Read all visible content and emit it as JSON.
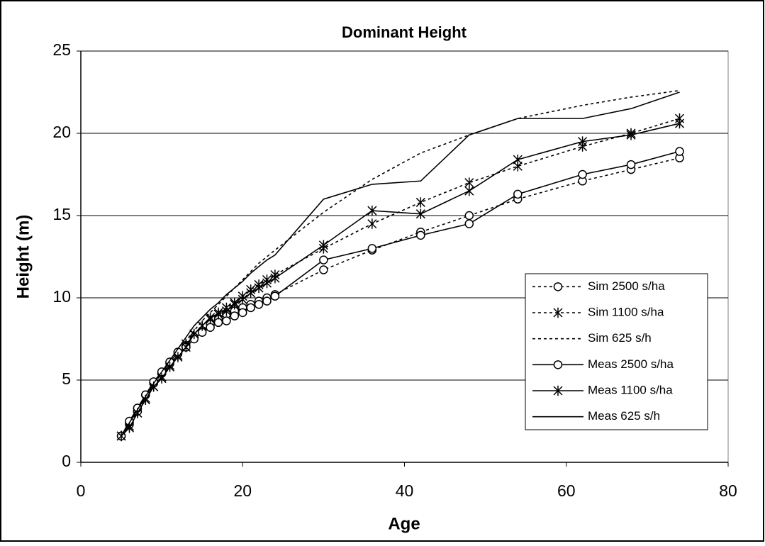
{
  "chart_data": {
    "type": "line",
    "title": "Dominant Height",
    "x_label": "Age",
    "y_label": "Height (m)",
    "x": [
      5,
      6,
      7,
      8,
      9,
      10,
      11,
      12,
      13,
      14,
      15,
      16,
      17,
      18,
      19,
      20,
      21,
      22,
      23,
      24,
      30,
      36,
      42,
      48,
      54,
      62,
      68,
      74
    ],
    "series": [
      {
        "name": "Sim 2500 s/ha",
        "color": "#000000",
        "line_style": "dotted",
        "marker": "circle",
        "values": [
          1.6,
          2.3,
          3.1,
          4.1,
          4.8,
          5.4,
          6.0,
          6.6,
          7.1,
          7.6,
          8.0,
          8.4,
          8.7,
          9.0,
          9.2,
          9.4,
          9.6,
          9.8,
          10.0,
          10.2,
          11.7,
          12.9,
          14.0,
          15.0,
          16.0,
          17.1,
          17.8,
          18.5
        ]
      },
      {
        "name": "Sim 1100 s/ha",
        "color": "#000000",
        "line_style": "dotted",
        "marker": "star",
        "values": [
          1.6,
          2.2,
          3.0,
          3.9,
          4.6,
          5.2,
          5.9,
          6.5,
          7.2,
          7.8,
          8.3,
          8.7,
          9.1,
          9.4,
          9.7,
          10.1,
          10.5,
          10.8,
          11.1,
          11.4,
          13.0,
          14.5,
          15.8,
          17.0,
          18.0,
          19.2,
          20.0,
          20.9
        ]
      },
      {
        "name": "Sim 625 s/h",
        "color": "#000000",
        "line_style": "dotted",
        "marker": "none",
        "values": [
          1.6,
          2.3,
          3.1,
          4.0,
          4.8,
          5.4,
          6.1,
          6.7,
          7.4,
          8.0,
          8.6,
          9.1,
          9.6,
          10.1,
          10.6,
          11.1,
          11.6,
          12.1,
          12.5,
          12.9,
          15.2,
          17.2,
          18.8,
          19.9,
          20.9,
          21.7,
          22.2,
          22.6
        ]
      },
      {
        "name": "Meas 2500 s/ha",
        "color": "#000000",
        "line_style": "solid",
        "marker": "circle",
        "values": [
          1.6,
          2.5,
          3.3,
          4.1,
          4.9,
          5.5,
          6.1,
          6.7,
          7.0,
          7.5,
          7.9,
          8.2,
          8.5,
          8.6,
          8.9,
          9.1,
          9.4,
          9.6,
          9.8,
          10.1,
          12.3,
          13.0,
          13.8,
          14.5,
          16.3,
          17.5,
          18.1,
          18.9
        ]
      },
      {
        "name": "Meas 1100 s/ha",
        "color": "#000000",
        "line_style": "solid",
        "marker": "star",
        "values": [
          1.6,
          2.1,
          3.0,
          3.8,
          4.6,
          5.1,
          5.8,
          6.4,
          7.0,
          7.8,
          8.3,
          8.8,
          9.0,
          9.2,
          9.6,
          9.9,
          10.3,
          10.6,
          10.9,
          11.2,
          13.2,
          15.3,
          15.1,
          16.5,
          18.4,
          19.5,
          19.9,
          20.6
        ]
      },
      {
        "name": "Meas 625 s/h",
        "color": "#000000",
        "line_style": "solid",
        "marker": "none",
        "values": [
          1.6,
          2.4,
          3.2,
          4.0,
          4.8,
          5.5,
          6.2,
          6.9,
          7.6,
          8.3,
          8.8,
          9.3,
          9.7,
          10.2,
          10.6,
          11.0,
          11.5,
          11.9,
          12.3,
          12.6,
          16.0,
          16.9,
          17.1,
          19.9,
          20.9,
          20.9,
          21.5,
          22.5
        ]
      }
    ],
    "xlim": [
      0,
      80
    ],
    "xticks": [
      0,
      20,
      40,
      60,
      80
    ],
    "ylim": [
      0,
      25
    ],
    "yticks": [
      0,
      5,
      10,
      15,
      20,
      25
    ],
    "grid": true,
    "legend": "right"
  }
}
